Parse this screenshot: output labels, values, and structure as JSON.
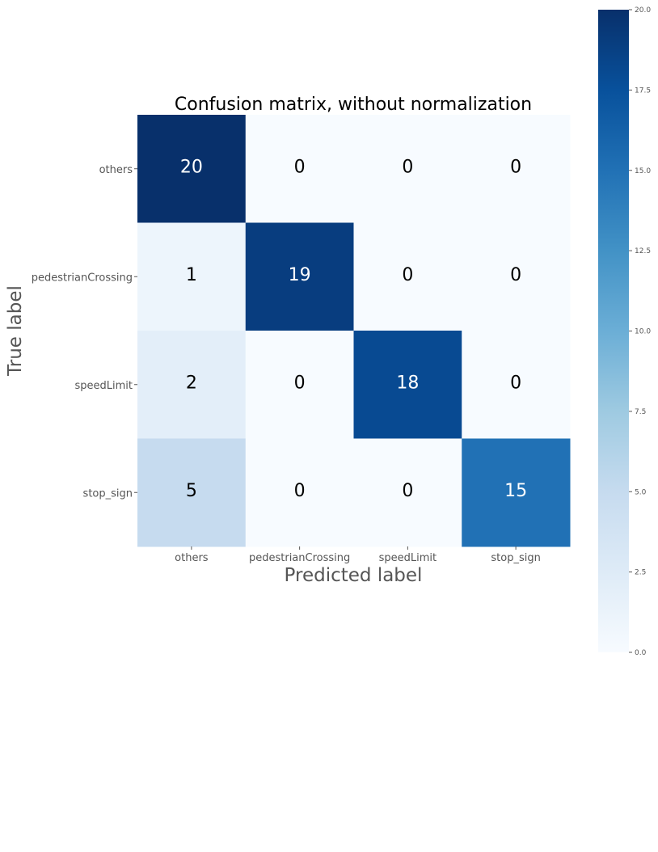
{
  "chart_data": {
    "type": "heatmap",
    "title": "Confusion matrix, without normalization",
    "xlabel": "Predicted label",
    "ylabel": "True label",
    "x_categories": [
      "others",
      "pedestrianCrossing",
      "speedLimit",
      "stop_sign"
    ],
    "y_categories": [
      "others",
      "pedestrianCrossing",
      "speedLimit",
      "stop_sign"
    ],
    "values": [
      [
        20,
        0,
        0,
        0
      ],
      [
        1,
        19,
        0,
        0
      ],
      [
        2,
        0,
        18,
        0
      ],
      [
        5,
        0,
        0,
        15
      ]
    ],
    "colormap": "Blues",
    "value_range": [
      0,
      20
    ],
    "colorbar_ticks": [
      "0.0",
      "2.5",
      "5.0",
      "7.5",
      "10.0",
      "12.5",
      "15.0",
      "17.5",
      "20.0"
    ],
    "colorbar_tick_values": [
      0,
      2.5,
      5,
      7.5,
      10,
      12.5,
      15,
      17.5,
      20
    ],
    "grid": false,
    "colors": {
      "blues_low": "#f7fbff",
      "blues_high": "#08306b",
      "text_dark": "#000000",
      "text_light": "#ffffff",
      "tick_text": "#555555"
    }
  }
}
